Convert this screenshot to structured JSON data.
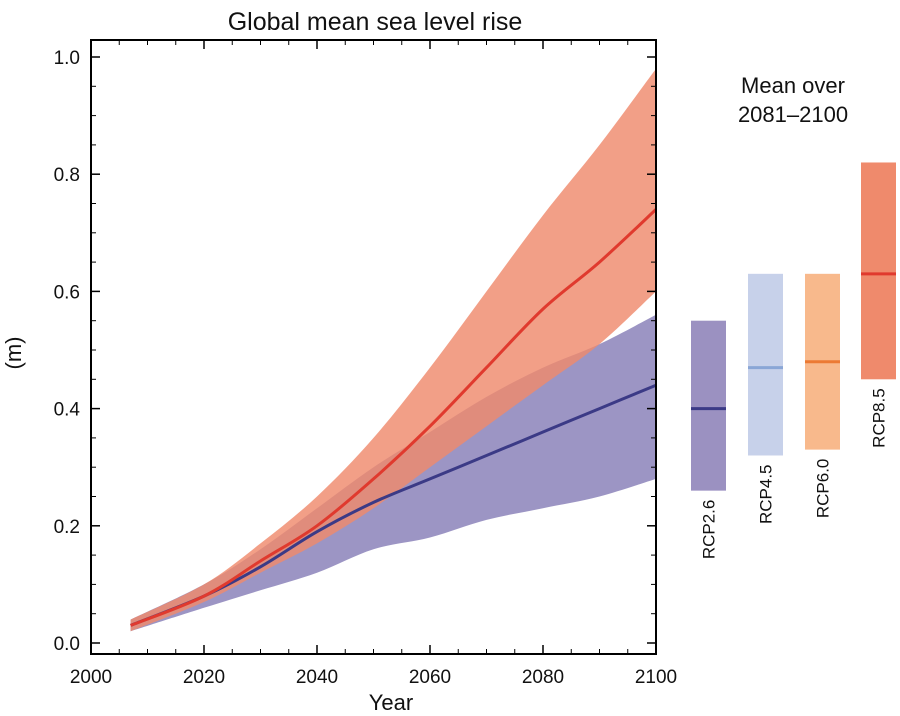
{
  "chart_data": {
    "type": "area",
    "title": "Global mean sea level rise",
    "xlabel": "Year",
    "ylabel": "(m)",
    "xlim": [
      2000,
      2100
    ],
    "ylim": [
      0.0,
      1.0
    ],
    "xticks": [
      "2000",
      "2020",
      "2040",
      "2060",
      "2080",
      "2100"
    ],
    "yticks": [
      "0.0",
      "0.2",
      "0.4",
      "0.6",
      "0.8",
      "1.0"
    ],
    "grid": false,
    "series": [
      {
        "name": "RCP2.6",
        "color": "#3b3a86",
        "band_color": "#9c95c4",
        "x": [
          2007,
          2020,
          2030,
          2040,
          2050,
          2060,
          2070,
          2080,
          2090,
          2100
        ],
        "mean": [
          0.03,
          0.08,
          0.13,
          0.19,
          0.24,
          0.28,
          0.32,
          0.36,
          0.4,
          0.44
        ],
        "low": [
          0.02,
          0.06,
          0.09,
          0.12,
          0.16,
          0.18,
          0.21,
          0.23,
          0.25,
          0.28
        ],
        "high": [
          0.04,
          0.1,
          0.16,
          0.23,
          0.3,
          0.36,
          0.42,
          0.47,
          0.51,
          0.56
        ]
      },
      {
        "name": "RCP8.5",
        "color": "#e03a2e",
        "band_color": "#ef8a6c",
        "x": [
          2007,
          2020,
          2030,
          2040,
          2050,
          2060,
          2070,
          2080,
          2090,
          2100
        ],
        "mean": [
          0.03,
          0.08,
          0.14,
          0.2,
          0.28,
          0.37,
          0.47,
          0.57,
          0.65,
          0.74
        ],
        "low": [
          0.02,
          0.07,
          0.12,
          0.17,
          0.23,
          0.3,
          0.37,
          0.44,
          0.51,
          0.6
        ],
        "high": [
          0.04,
          0.1,
          0.17,
          0.25,
          0.35,
          0.47,
          0.6,
          0.73,
          0.85,
          0.98
        ]
      }
    ],
    "side_panel": {
      "title_line1": "Mean over",
      "title_line2": "2081–2100",
      "bars": [
        {
          "name": "RCP2.6",
          "low": 0.26,
          "mean": 0.4,
          "high": 0.55,
          "fill": "#9b91c1",
          "line": "#3b3a86"
        },
        {
          "name": "RCP4.5",
          "low": 0.32,
          "mean": 0.47,
          "high": 0.63,
          "fill": "#c7d1ea",
          "line": "#8aa6d6"
        },
        {
          "name": "RCP6.0",
          "low": 0.33,
          "mean": 0.48,
          "high": 0.63,
          "fill": "#f8b98c",
          "line": "#ec7a34"
        },
        {
          "name": "RCP8.5",
          "low": 0.45,
          "mean": 0.63,
          "high": 0.82,
          "fill": "#ef8a6c",
          "line": "#e03a2e"
        }
      ]
    }
  }
}
